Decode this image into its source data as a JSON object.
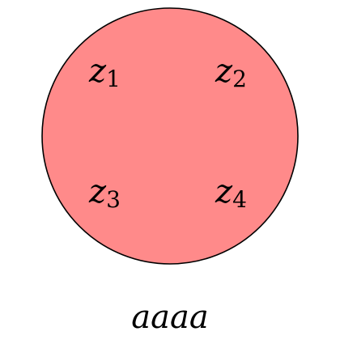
{
  "colors": {
    "circle_fill": "#ff8a8a",
    "circle_stroke": "#000000",
    "background": "#ffffff"
  },
  "labels": [
    {
      "base": "z",
      "sub": "1"
    },
    {
      "base": "z",
      "sub": "2"
    },
    {
      "base": "z",
      "sub": "3"
    },
    {
      "base": "z",
      "sub": "4"
    }
  ],
  "caption": "aaaa"
}
